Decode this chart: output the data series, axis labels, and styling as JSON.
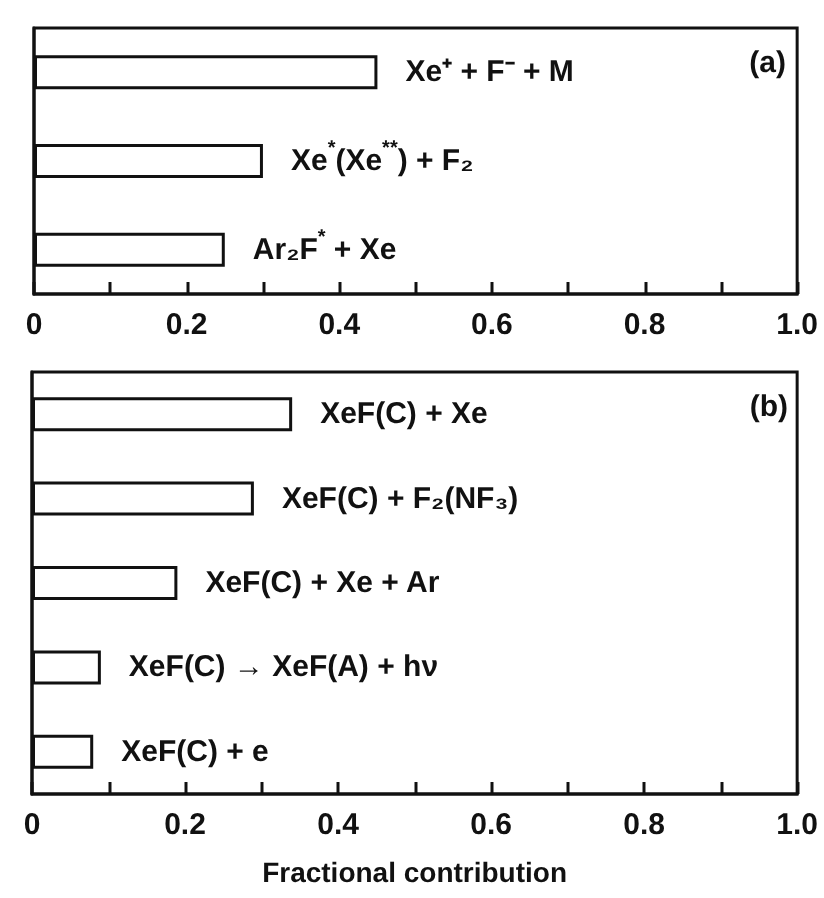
{
  "chart_data": [
    {
      "type": "bar",
      "orientation": "horizontal",
      "categories": [
        "Xe⁺ + F⁻ + M",
        "Xe$^{*}$(Xe$^{**}$) + F₂",
        "Ar₂F$^{*}$ + Xe"
      ],
      "values": [
        0.45,
        0.3,
        0.25
      ],
      "color": "#ffffff",
      "xlim": [
        0,
        1
      ],
      "xticks": [
        0,
        {
          "value": 0.1,
          "label": null
        },
        0.2,
        {
          "value": 0.3,
          "label": null
        },
        0.4,
        {
          "value": 0.5,
          "label": null
        },
        0.6,
        {
          "value": 0.7,
          "label": null
        },
        0.8,
        {
          "value": 0.9,
          "label": null
        },
        {
          "value": 1,
          "label": "1.0"
        }
      ],
      "tick_labels": "x",
      "annotations": [
        "(a)"
      ]
    },
    {
      "type": "bar",
      "orientation": "horizontal",
      "categories": [
        "XeF(C) + Xe",
        "XeF(C) + F₂(NF₃)",
        "XeF(C) + Xe + Ar",
        "XeF(C) → XeF(A) + hν",
        "XeF(C) + e"
      ],
      "values": [
        0.34,
        0.29,
        0.19,
        0.09,
        0.08
      ],
      "color": "#ffffff",
      "xlim": [
        0,
        1
      ],
      "xticks": [
        0,
        {
          "value": 0.1,
          "label": null
        },
        0.2,
        {
          "value": 0.3,
          "label": null
        },
        0.4,
        {
          "value": 0.5,
          "label": null
        },
        0.6,
        {
          "value": 0.7,
          "label": null
        },
        0.8,
        {
          "value": 0.9,
          "label": null
        },
        {
          "value": 1,
          "label": "1.0"
        }
      ],
      "xlabel": "Fractional contribution",
      "tick_labels": "x",
      "annotations": [
        "(b)"
      ]
    }
  ]
}
